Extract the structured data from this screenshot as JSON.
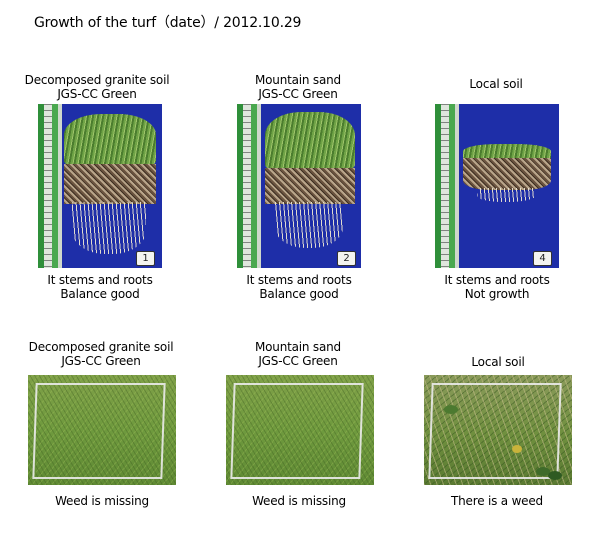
{
  "title": "Growth of the turf（date）/ 2012.10.29",
  "top_row": [
    {
      "caption_line1": "Decomposed granite soil",
      "caption_line2": "JGS-CC Green",
      "tag": "1",
      "result_line1": "It stems and roots",
      "result_line2": "Balance good"
    },
    {
      "caption_line1": "Mountain sand",
      "caption_line2": "JGS-CC Green",
      "tag": "2",
      "result_line1": "It stems and roots",
      "result_line2": "Balance good"
    },
    {
      "caption_line1": "Local soil",
      "caption_line2": "",
      "tag": "4",
      "result_line1": "It stems and roots",
      "result_line2": "Not growth"
    }
  ],
  "bottom_row": [
    {
      "caption_line1": "Decomposed granite soil",
      "caption_line2": "JGS-CC Green",
      "result": "Weed is missing"
    },
    {
      "caption_line1": "Mountain sand",
      "caption_line2": "JGS-CC Green",
      "result": "Weed is missing"
    },
    {
      "caption_line1": "Local soil",
      "caption_line2": "",
      "result": "There is a weed"
    }
  ]
}
